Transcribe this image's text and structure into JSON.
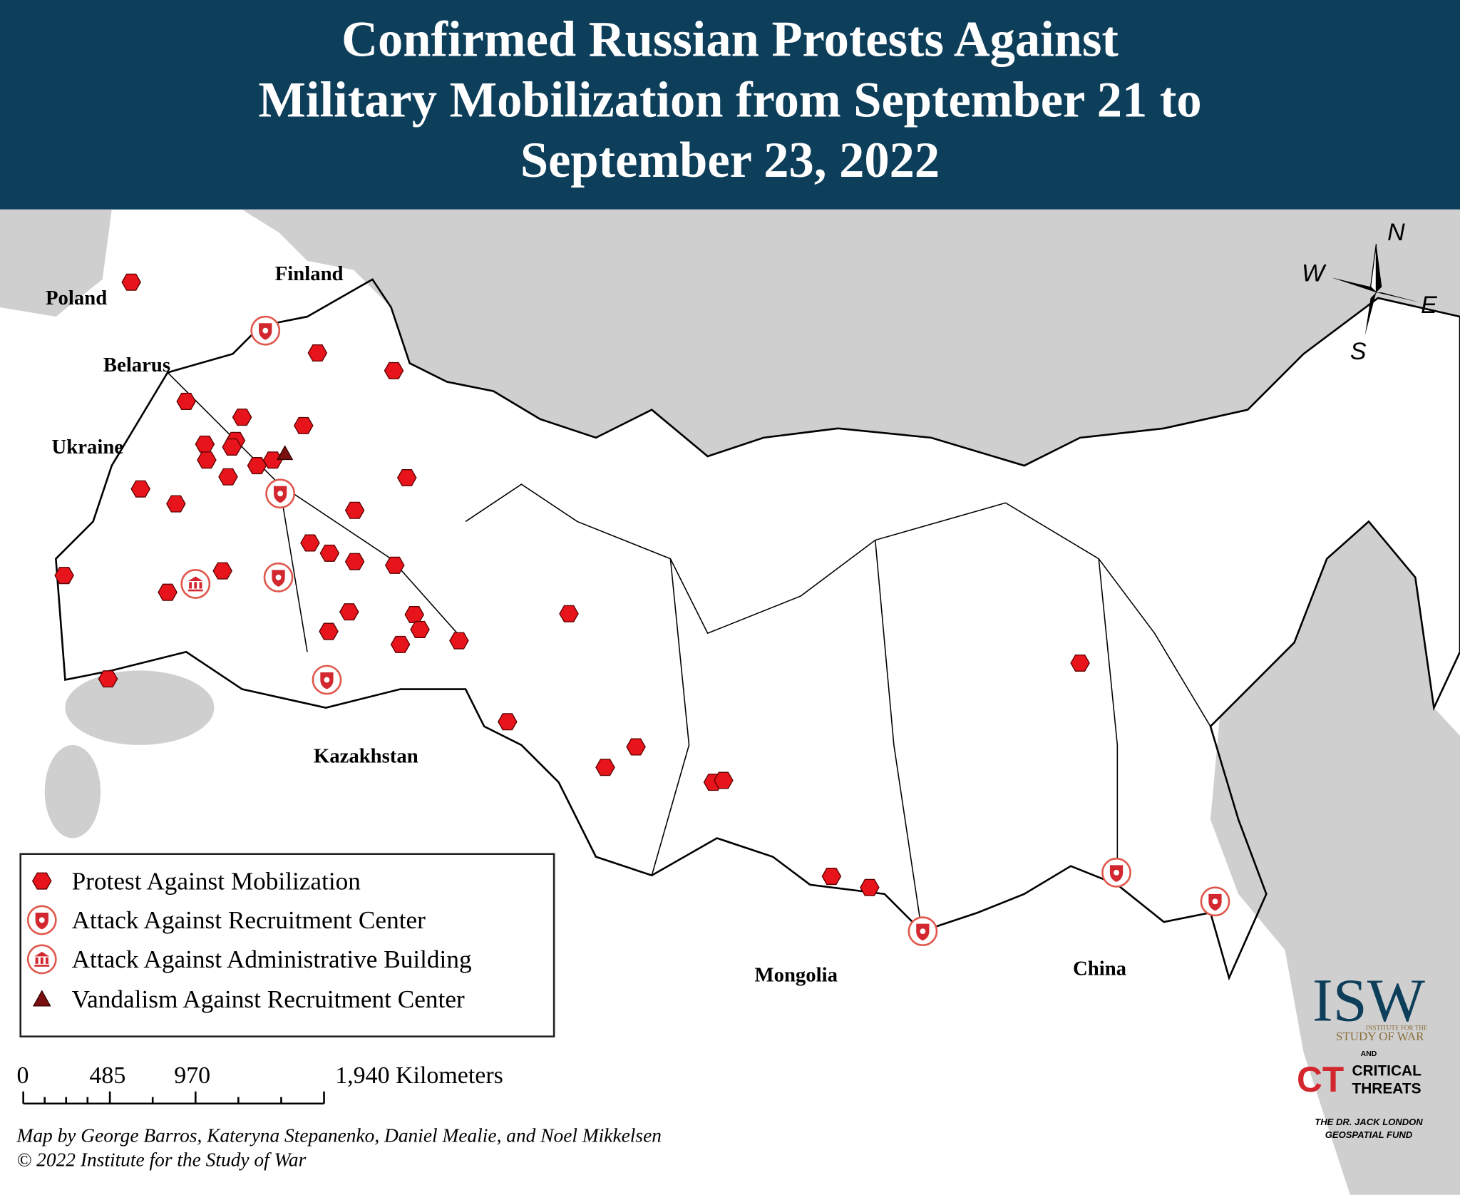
{
  "title_lines": [
    "Confirmed Russian Protests Against",
    "Military Mobilization from September 21 to",
    "September 23, 2022"
  ],
  "countries": [
    "Poland",
    "Finland",
    "Belarus",
    "Ukraine",
    "Kazakhstan",
    "Mongolia",
    "China"
  ],
  "legend": {
    "items": [
      "Protest Against Mobilization",
      "Attack Against Recruitment Center",
      "Attack Against Administrative Building",
      "Vandalism Against Recruitment Center"
    ]
  },
  "scale_bar": {
    "labels": [
      "0",
      "485",
      "970",
      "1,940 Kilometers"
    ]
  },
  "compass": [
    "N",
    "W",
    "E",
    "S"
  ],
  "credits": [
    "Map by George Barros, Kateryna Stepanenko, Daniel Mealie, and Noel Mikkelsen",
    "© 2022 Institute for the Study of War"
  ],
  "logo": {
    "isw": "ISW",
    "isw_sub": [
      "INSTITUTE FOR THE",
      "STUDY OF WAR"
    ],
    "and": "AND",
    "ct": "CT",
    "ct_name": [
      "CRITICAL",
      "THREATS"
    ],
    "fund": [
      "THE DR. JACK LONDON",
      "GEOSPATIAL FUND"
    ]
  }
}
